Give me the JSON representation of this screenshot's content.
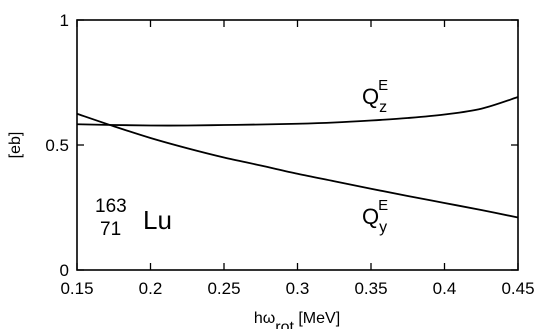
{
  "chart_data": {
    "type": "line",
    "title": "",
    "xlabel": {
      "main": "hω",
      "sub": "rot",
      "unit": " [MeV]"
    },
    "ylabel": "[eb]",
    "xlim": [
      0.15,
      0.45
    ],
    "ylim": [
      0,
      1
    ],
    "x_ticks": [
      0.15,
      0.2,
      0.25,
      0.3,
      0.35,
      0.4,
      0.45
    ],
    "x_tick_labels": [
      "0.15",
      "0.2",
      "0.25",
      "0.3",
      "0.35",
      "0.4",
      "0.45"
    ],
    "y_ticks": [
      0,
      0.5,
      1
    ],
    "y_tick_labels": [
      "0",
      "0.5",
      "1"
    ],
    "grid": false,
    "series": [
      {
        "name": "Q_z^E",
        "label": {
          "main": "Q",
          "sub": "z",
          "sup": "E"
        },
        "x": [
          0.15,
          0.175,
          0.2,
          0.225,
          0.25,
          0.275,
          0.3,
          0.325,
          0.35,
          0.375,
          0.4,
          0.425,
          0.45
        ],
        "y": [
          0.583,
          0.58,
          0.578,
          0.578,
          0.58,
          0.582,
          0.585,
          0.59,
          0.598,
          0.608,
          0.622,
          0.645,
          0.692
        ]
      },
      {
        "name": "Q_y^E",
        "label": {
          "main": "Q",
          "sub": "y",
          "sup": "E"
        },
        "x": [
          0.15,
          0.175,
          0.2,
          0.225,
          0.25,
          0.275,
          0.3,
          0.325,
          0.35,
          0.375,
          0.4,
          0.425,
          0.45
        ],
        "y": [
          0.625,
          0.575,
          0.528,
          0.487,
          0.45,
          0.418,
          0.385,
          0.355,
          0.325,
          0.296,
          0.268,
          0.24,
          0.21
        ]
      }
    ],
    "annotation": {
      "mass": "163",
      "atomic": "71",
      "element": "Lu"
    }
  }
}
